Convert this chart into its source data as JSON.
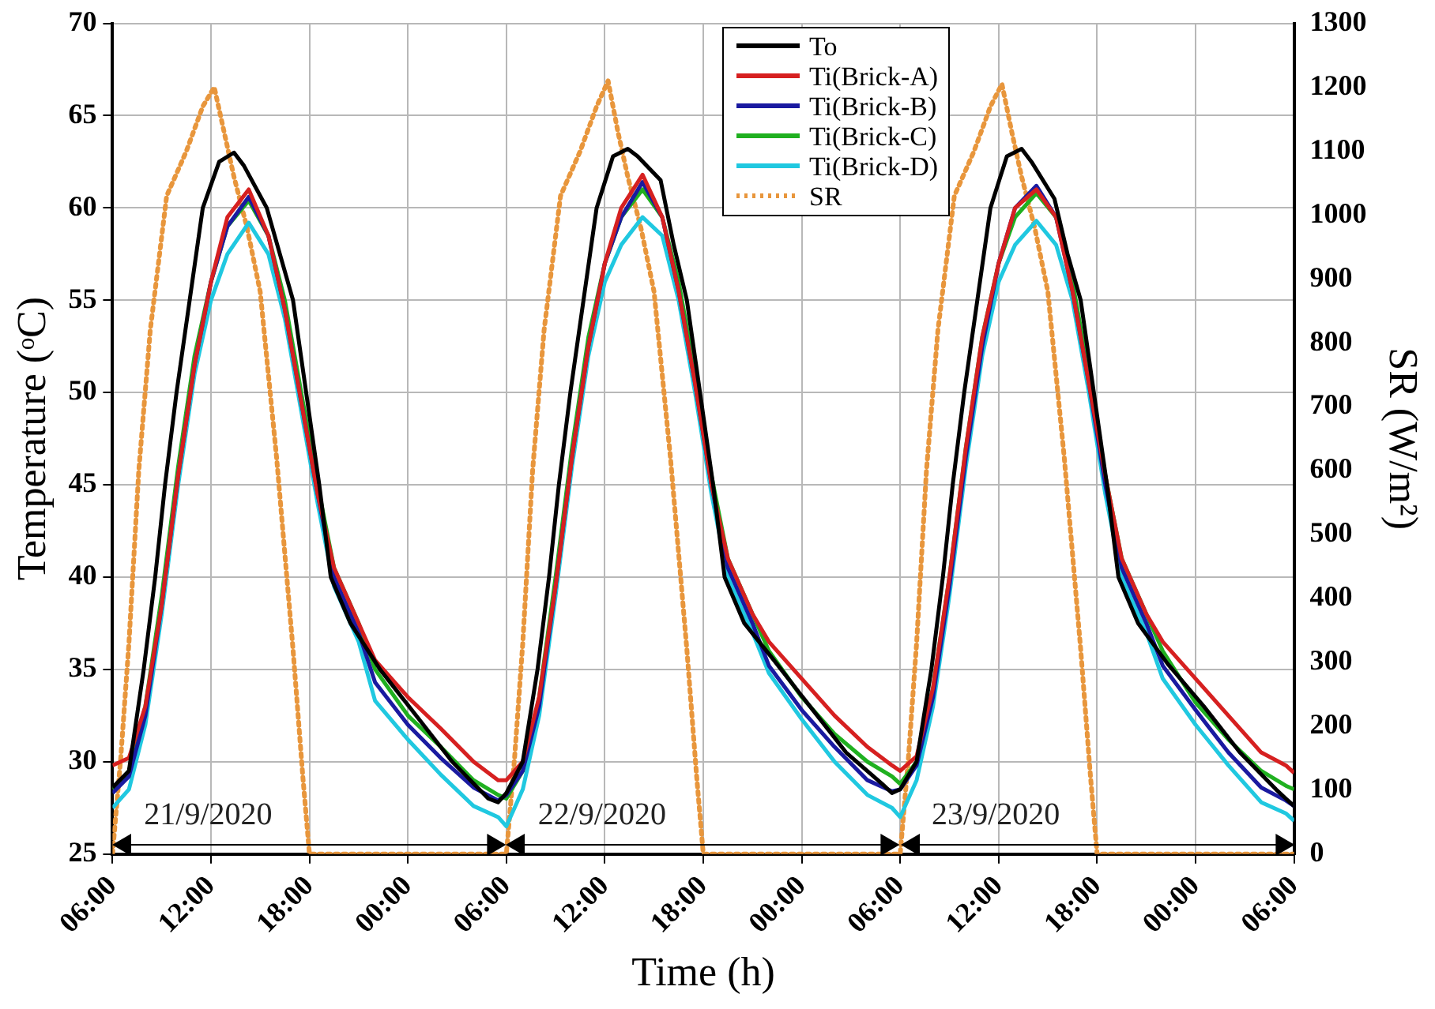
{
  "chart_data": {
    "type": "line",
    "xlabel": "Time (h)",
    "ylabel": "Temperature (ᵒC)",
    "y2label": "SR (W/m²)",
    "xlim": [
      "2020-09-21T06:00",
      "2020-09-24T06:00"
    ],
    "xticks": [
      {
        "value": "2020-09-21T06:00",
        "label": "06:00"
      },
      {
        "value": "2020-09-21T12:00",
        "label": "12:00"
      },
      {
        "value": "2020-09-21T18:00",
        "label": "18:00"
      },
      {
        "value": "2020-09-22T00:00",
        "label": "00:00"
      },
      {
        "value": "2020-09-22T06:00",
        "label": "06:00"
      },
      {
        "value": "2020-09-22T12:00",
        "label": "12:00"
      },
      {
        "value": "2020-09-22T18:00",
        "label": "18:00"
      },
      {
        "value": "2020-09-23T00:00",
        "label": "00:00"
      },
      {
        "value": "2020-09-23T06:00",
        "label": "06:00"
      },
      {
        "value": "2020-09-23T12:00",
        "label": "12:00"
      },
      {
        "value": "2020-09-23T18:00",
        "label": "18:00"
      },
      {
        "value": "2020-09-24T00:00",
        "label": "00:00"
      },
      {
        "value": "2020-09-24T06:00",
        "label": "06:00"
      }
    ],
    "ylim": [
      25,
      70
    ],
    "yticks": [
      25,
      30,
      35,
      40,
      45,
      50,
      55,
      60,
      65,
      70
    ],
    "y2lim": [
      0,
      1300
    ],
    "y2ticks": [
      0,
      100,
      200,
      300,
      400,
      500,
      600,
      700,
      800,
      900,
      1000,
      1100,
      1200,
      1300
    ],
    "grid": true,
    "legend": "top",
    "marker": "none",
    "annotations": [
      {
        "text": "21/9/2020",
        "x": "2020-09-21T18:00",
        "y": 25.5
      },
      {
        "text": "22/9/2020",
        "x": "2020-09-22T18:00",
        "y": 25.5
      },
      {
        "text": "23/9/2020",
        "x": "2020-09-23T18:00",
        "y": 25.5
      }
    ],
    "series": [
      {
        "name": "To",
        "color": "#000000",
        "x": [
          "2020-09-21T06:00",
          "2020-09-21T07:00",
          "2020-09-21T07:54",
          "2020-09-21T08:36",
          "2020-09-21T09:12",
          "2020-09-21T09:54",
          "2020-09-21T10:42",
          "2020-09-21T11:30",
          "2020-09-21T12:30",
          "2020-09-21T13:24",
          "2020-09-21T14:00",
          "2020-09-21T15:24",
          "2020-09-21T16:12",
          "2020-09-21T17:00",
          "2020-09-21T17:48",
          "2020-09-21T18:36",
          "2020-09-21T19:18",
          "2020-09-21T20:30",
          "2020-09-21T22:18",
          "2020-09-22T00:30",
          "2020-09-22T02:42",
          "2020-09-22T04:54",
          "2020-09-22T05:30",
          "2020-09-22T06:00",
          "2020-09-22T07:00",
          "2020-09-22T07:54",
          "2020-09-22T08:36",
          "2020-09-22T09:12",
          "2020-09-22T09:54",
          "2020-09-22T10:42",
          "2020-09-22T11:30",
          "2020-09-22T12:30",
          "2020-09-22T13:24",
          "2020-09-22T14:00",
          "2020-09-22T15:24",
          "2020-09-22T16:12",
          "2020-09-22T17:00",
          "2020-09-22T17:48",
          "2020-09-22T18:36",
          "2020-09-22T19:18",
          "2020-09-22T20:30",
          "2020-09-22T22:18",
          "2020-09-23T00:30",
          "2020-09-23T02:42",
          "2020-09-23T04:54",
          "2020-09-23T05:30",
          "2020-09-23T06:00",
          "2020-09-23T07:00",
          "2020-09-23T07:54",
          "2020-09-23T08:36",
          "2020-09-23T09:12",
          "2020-09-23T09:54",
          "2020-09-23T10:42",
          "2020-09-23T11:30",
          "2020-09-23T12:30",
          "2020-09-23T13:24",
          "2020-09-23T14:00",
          "2020-09-23T15:24",
          "2020-09-23T16:12",
          "2020-09-23T17:00",
          "2020-09-23T17:48",
          "2020-09-23T18:36",
          "2020-09-23T19:18",
          "2020-09-23T20:30",
          "2020-09-23T22:18",
          "2020-09-24T00:30",
          "2020-09-24T02:42",
          "2020-09-24T04:54",
          "2020-09-24T05:30",
          "2020-09-24T06:00"
        ],
        "values": [
          28.6,
          29.5,
          35,
          40,
          45,
          50,
          55,
          60,
          62.5,
          63,
          62.3,
          60,
          57.5,
          55,
          50,
          45,
          40,
          37.5,
          35,
          32.5,
          30,
          28,
          27.8,
          28.3,
          30,
          35,
          40,
          45,
          50,
          55,
          60,
          62.8,
          63.2,
          62.8,
          61.5,
          58,
          55,
          50,
          45,
          40,
          37.5,
          35.5,
          33,
          30.5,
          28.8,
          28.3,
          28.5,
          30,
          35,
          40,
          45,
          50,
          55,
          60,
          62.8,
          63.2,
          62.5,
          60.5,
          57.5,
          55,
          50,
          45,
          40,
          37.5,
          35.3,
          33,
          30.5,
          28.5,
          28,
          27.6
        ]
      },
      {
        "name": "Ti(Brick-A)",
        "color": "#d62020",
        "x": [
          "2020-09-21T06:00",
          "2020-09-21T07:00",
          "2020-09-21T08:00",
          "2020-09-21T09:00",
          "2020-09-21T10:00",
          "2020-09-21T11:00",
          "2020-09-21T12:00",
          "2020-09-21T13:00",
          "2020-09-21T14:18",
          "2020-09-21T15:30",
          "2020-09-21T16:30",
          "2020-09-21T17:30",
          "2020-09-21T18:30",
          "2020-09-21T19:30",
          "2020-09-21T21:00",
          "2020-09-21T22:00",
          "2020-09-22T00:00",
          "2020-09-22T02:00",
          "2020-09-22T04:00",
          "2020-09-22T05:30",
          "2020-09-22T06:00",
          "2020-09-22T07:00",
          "2020-09-22T08:00",
          "2020-09-22T09:00",
          "2020-09-22T10:00",
          "2020-09-22T11:00",
          "2020-09-22T12:00",
          "2020-09-22T13:00",
          "2020-09-22T14:18",
          "2020-09-22T15:30",
          "2020-09-22T16:30",
          "2020-09-22T17:30",
          "2020-09-22T18:30",
          "2020-09-22T19:30",
          "2020-09-22T21:00",
          "2020-09-22T22:00",
          "2020-09-23T00:00",
          "2020-09-23T02:00",
          "2020-09-23T04:00",
          "2020-09-23T05:30",
          "2020-09-23T06:00",
          "2020-09-23T07:00",
          "2020-09-23T08:00",
          "2020-09-23T09:00",
          "2020-09-23T10:00",
          "2020-09-23T11:00",
          "2020-09-23T12:00",
          "2020-09-23T13:00",
          "2020-09-23T14:18",
          "2020-09-23T15:30",
          "2020-09-23T16:30",
          "2020-09-23T17:30",
          "2020-09-23T18:30",
          "2020-09-23T19:30",
          "2020-09-23T21:00",
          "2020-09-23T22:00",
          "2020-09-24T00:00",
          "2020-09-24T02:00",
          "2020-09-24T04:00",
          "2020-09-24T05:30",
          "2020-09-24T06:00"
        ],
        "values": [
          29.8,
          30.2,
          33,
          38.5,
          45.5,
          51.5,
          56,
          59.5,
          61,
          58.5,
          54.5,
          49.5,
          44.5,
          40.5,
          37.5,
          35.5,
          33.5,
          31.8,
          30,
          29,
          29,
          30,
          33.5,
          39.5,
          46.5,
          52.5,
          57,
          60,
          61.8,
          59.5,
          55.5,
          50.5,
          45,
          41,
          38,
          36.5,
          34.5,
          32.5,
          30.8,
          29.8,
          29.5,
          30.3,
          34,
          40,
          47,
          53,
          57,
          60,
          61,
          59.5,
          55.5,
          50.5,
          45.5,
          41,
          38,
          36.5,
          34.5,
          32.5,
          30.5,
          29.8,
          29.4
        ]
      },
      {
        "name": "Ti(Brick-B)",
        "color": "#1a1aa0",
        "x": [
          "2020-09-21T06:00",
          "2020-09-21T07:00",
          "2020-09-21T08:00",
          "2020-09-21T09:00",
          "2020-09-21T10:00",
          "2020-09-21T11:00",
          "2020-09-21T12:00",
          "2020-09-21T13:00",
          "2020-09-21T14:18",
          "2020-09-21T15:30",
          "2020-09-21T16:30",
          "2020-09-21T17:30",
          "2020-09-21T18:30",
          "2020-09-21T19:30",
          "2020-09-21T21:00",
          "2020-09-21T22:00",
          "2020-09-22T00:00",
          "2020-09-22T02:00",
          "2020-09-22T04:00",
          "2020-09-22T05:30",
          "2020-09-22T06:00",
          "2020-09-22T07:00",
          "2020-09-22T08:00",
          "2020-09-22T09:00",
          "2020-09-22T10:00",
          "2020-09-22T11:00",
          "2020-09-22T12:00",
          "2020-09-22T13:00",
          "2020-09-22T14:18",
          "2020-09-22T15:30",
          "2020-09-22T16:30",
          "2020-09-22T17:30",
          "2020-09-22T18:30",
          "2020-09-22T19:30",
          "2020-09-22T21:00",
          "2020-09-22T22:00",
          "2020-09-23T00:00",
          "2020-09-23T02:00",
          "2020-09-23T04:00",
          "2020-09-23T05:30",
          "2020-09-23T06:00",
          "2020-09-23T07:00",
          "2020-09-23T08:00",
          "2020-09-23T09:00",
          "2020-09-23T10:00",
          "2020-09-23T11:00",
          "2020-09-23T12:00",
          "2020-09-23T13:00",
          "2020-09-23T14:18",
          "2020-09-23T15:30",
          "2020-09-23T16:30",
          "2020-09-23T17:30",
          "2020-09-23T18:30",
          "2020-09-23T19:30",
          "2020-09-23T21:00",
          "2020-09-23T22:00",
          "2020-09-24T00:00",
          "2020-09-24T02:00",
          "2020-09-24T04:00",
          "2020-09-24T05:30",
          "2020-09-24T06:00"
        ],
        "values": [
          28.3,
          29.2,
          32.5,
          38.5,
          45.5,
          51.5,
          56,
          59,
          60.6,
          58.5,
          54.5,
          49.5,
          44.5,
          40,
          37,
          34.3,
          32,
          30.2,
          28.6,
          27.9,
          28.2,
          29.5,
          33,
          39.5,
          46.5,
          52.5,
          57,
          59.5,
          61.4,
          59.5,
          55.5,
          50.5,
          45,
          40.5,
          37.5,
          35.2,
          32.8,
          30.8,
          29,
          28.4,
          28.5,
          29.8,
          33.5,
          39.5,
          46.5,
          52.5,
          57,
          60,
          61.2,
          59.5,
          55.5,
          50.5,
          45,
          40.5,
          37.5,
          35.2,
          32.8,
          30.5,
          28.6,
          27.9,
          27.6
        ]
      },
      {
        "name": "Ti(Brick-C)",
        "color": "#20b020",
        "x": [
          "2020-09-21T06:00",
          "2020-09-21T07:00",
          "2020-09-21T08:00",
          "2020-09-21T09:00",
          "2020-09-21T10:00",
          "2020-09-21T11:00",
          "2020-09-21T12:00",
          "2020-09-21T13:00",
          "2020-09-21T14:18",
          "2020-09-21T15:30",
          "2020-09-21T16:30",
          "2020-09-21T17:30",
          "2020-09-21T18:30",
          "2020-09-21T19:30",
          "2020-09-21T21:00",
          "2020-09-21T22:00",
          "2020-09-22T00:00",
          "2020-09-22T02:00",
          "2020-09-22T04:00",
          "2020-09-22T05:30",
          "2020-09-22T06:00",
          "2020-09-22T07:00",
          "2020-09-22T08:00",
          "2020-09-22T09:00",
          "2020-09-22T10:00",
          "2020-09-22T11:00",
          "2020-09-22T12:00",
          "2020-09-22T13:00",
          "2020-09-22T14:18",
          "2020-09-22T15:30",
          "2020-09-22T16:30",
          "2020-09-22T17:30",
          "2020-09-22T18:30",
          "2020-09-22T19:30",
          "2020-09-22T21:00",
          "2020-09-22T22:00",
          "2020-09-23T00:00",
          "2020-09-23T02:00",
          "2020-09-23T04:00",
          "2020-09-23T05:30",
          "2020-09-23T06:00",
          "2020-09-23T07:00",
          "2020-09-23T08:00",
          "2020-09-23T09:00",
          "2020-09-23T10:00",
          "2020-09-23T11:00",
          "2020-09-23T12:00",
          "2020-09-23T13:00",
          "2020-09-23T14:18",
          "2020-09-23T15:30",
          "2020-09-23T16:30",
          "2020-09-23T17:30",
          "2020-09-23T18:30",
          "2020-09-23T19:30",
          "2020-09-23T21:00",
          "2020-09-23T22:00",
          "2020-09-24T00:00",
          "2020-09-24T02:00",
          "2020-09-24T04:00",
          "2020-09-24T05:30",
          "2020-09-24T06:00"
        ],
        "values": [
          28.5,
          29.5,
          33,
          39,
          46,
          52,
          56,
          59,
          60.4,
          58.5,
          55,
          50,
          45,
          40.5,
          37.5,
          35,
          32.5,
          30.8,
          29,
          28.2,
          28,
          29.5,
          33.5,
          40,
          47,
          53,
          57,
          59.5,
          61,
          59.5,
          56,
          51,
          45.5,
          41,
          38,
          36,
          33.5,
          31.5,
          30,
          29.2,
          28.8,
          30,
          34,
          40,
          47,
          53,
          57,
          59.5,
          60.8,
          59.5,
          56,
          51,
          45.5,
          41,
          38,
          36,
          33.2,
          31.2,
          29.5,
          28.7,
          28.5
        ]
      },
      {
        "name": "Ti(Brick-D)",
        "color": "#20c8e0",
        "x": [
          "2020-09-21T06:00",
          "2020-09-21T07:00",
          "2020-09-21T08:00",
          "2020-09-21T09:00",
          "2020-09-21T10:00",
          "2020-09-21T11:00",
          "2020-09-21T12:00",
          "2020-09-21T13:00",
          "2020-09-21T14:18",
          "2020-09-21T15:30",
          "2020-09-21T16:30",
          "2020-09-21T17:30",
          "2020-09-21T18:30",
          "2020-09-21T19:30",
          "2020-09-21T21:00",
          "2020-09-21T22:00",
          "2020-09-22T00:00",
          "2020-09-22T02:00",
          "2020-09-22T04:00",
          "2020-09-22T05:30",
          "2020-09-22T06:00",
          "2020-09-22T07:00",
          "2020-09-22T08:00",
          "2020-09-22T09:00",
          "2020-09-22T10:00",
          "2020-09-22T11:00",
          "2020-09-22T12:00",
          "2020-09-22T13:00",
          "2020-09-22T14:18",
          "2020-09-22T15:30",
          "2020-09-22T16:30",
          "2020-09-22T17:30",
          "2020-09-22T18:30",
          "2020-09-22T19:30",
          "2020-09-22T21:00",
          "2020-09-22T22:00",
          "2020-09-23T00:00",
          "2020-09-23T02:00",
          "2020-09-23T04:00",
          "2020-09-23T05:30",
          "2020-09-23T06:00",
          "2020-09-23T07:00",
          "2020-09-23T08:00",
          "2020-09-23T09:00",
          "2020-09-23T10:00",
          "2020-09-23T11:00",
          "2020-09-23T12:00",
          "2020-09-23T13:00",
          "2020-09-23T14:18",
          "2020-09-23T15:30",
          "2020-09-23T16:30",
          "2020-09-23T17:30",
          "2020-09-23T18:30",
          "2020-09-23T19:30",
          "2020-09-23T21:00",
          "2020-09-23T22:00",
          "2020-09-24T00:00",
          "2020-09-24T02:00",
          "2020-09-24T04:00",
          "2020-09-24T05:30",
          "2020-09-24T06:00"
        ],
        "values": [
          27.5,
          28.5,
          32,
          38,
          45,
          51,
          55,
          57.5,
          59.2,
          57.5,
          54,
          49,
          44,
          39.5,
          36.5,
          33.3,
          31.2,
          29.3,
          27.6,
          27,
          26.5,
          28.5,
          32.5,
          39,
          46,
          52,
          56,
          58,
          59.5,
          58.5,
          55,
          50,
          44.5,
          40,
          37,
          34.8,
          32.3,
          30,
          28.2,
          27.5,
          27,
          29,
          33,
          39,
          46,
          52,
          56,
          58,
          59.3,
          58,
          55,
          50,
          44.5,
          40,
          37,
          34.5,
          32,
          29.8,
          27.8,
          27.2,
          26.8
        ]
      },
      {
        "name": "SR",
        "color": "#e8963c",
        "axis": "y2",
        "line_style": "dotted",
        "x": [
          "2020-09-21T06:00",
          "2020-09-21T06:30",
          "2020-09-21T07:00",
          "2020-09-21T07:36",
          "2020-09-21T08:18",
          "2020-09-21T09:18",
          "2020-09-21T10:30",
          "2020-09-21T11:30",
          "2020-09-21T12:12",
          "2020-09-21T12:48",
          "2020-09-21T13:24",
          "2020-09-21T14:12",
          "2020-09-21T15:00",
          "2020-09-21T16:00",
          "2020-09-21T17:00",
          "2020-09-21T17:36",
          "2020-09-21T18:00",
          "2020-09-22T06:00",
          "2020-09-22T06:30",
          "2020-09-22T07:00",
          "2020-09-22T07:36",
          "2020-09-22T08:18",
          "2020-09-22T09:18",
          "2020-09-22T10:30",
          "2020-09-22T11:30",
          "2020-09-22T12:12",
          "2020-09-22T12:48",
          "2020-09-22T13:24",
          "2020-09-22T14:12",
          "2020-09-22T15:00",
          "2020-09-22T16:00",
          "2020-09-22T17:00",
          "2020-09-22T17:36",
          "2020-09-22T18:00",
          "2020-09-23T06:00",
          "2020-09-23T06:30",
          "2020-09-23T07:00",
          "2020-09-23T07:36",
          "2020-09-23T08:18",
          "2020-09-23T09:18",
          "2020-09-23T10:30",
          "2020-09-23T11:30",
          "2020-09-23T12:12",
          "2020-09-23T12:48",
          "2020-09-23T13:24",
          "2020-09-23T14:12",
          "2020-09-23T15:00",
          "2020-09-23T16:00",
          "2020-09-23T17:00",
          "2020-09-23T17:36",
          "2020-09-23T18:00",
          "2020-09-24T06:00"
        ],
        "values": [
          0,
          150,
          330,
          600,
          820,
          1030,
          1100,
          1170,
          1200,
          1130,
          1060,
          980,
          880,
          620,
          320,
          120,
          0,
          0,
          150,
          330,
          600,
          820,
          1030,
          1100,
          1170,
          1210,
          1130,
          1060,
          980,
          880,
          620,
          320,
          120,
          0,
          0,
          150,
          330,
          600,
          820,
          1030,
          1100,
          1170,
          1205,
          1130,
          1060,
          980,
          880,
          620,
          320,
          120,
          0,
          0
        ]
      }
    ]
  }
}
